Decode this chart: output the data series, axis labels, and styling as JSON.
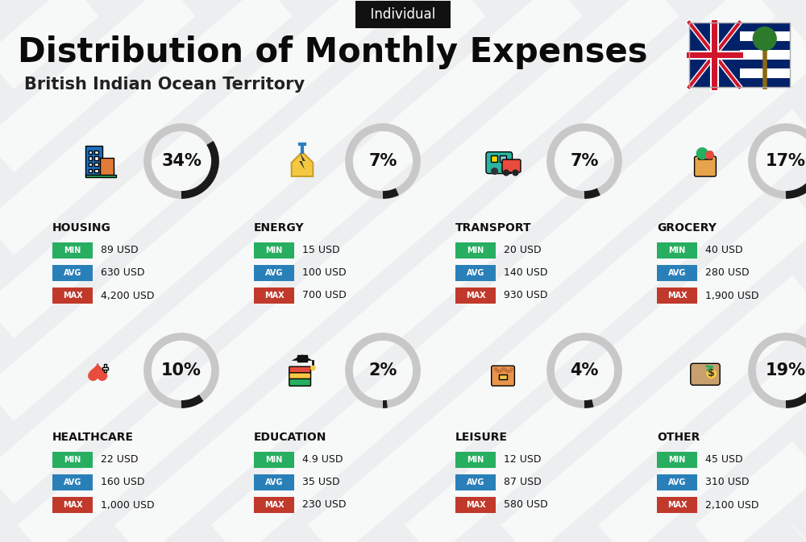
{
  "title": "Distribution of Monthly Expenses",
  "subtitle": "British Indian Ocean Territory",
  "tag": "Individual",
  "bg_color": "#edeef0",
  "stripe_color": "#ffffff",
  "categories": [
    {
      "name": "HOUSING",
      "pct": 34,
      "min": "89 USD",
      "avg": "630 USD",
      "max": "4,200 USD",
      "row": 0,
      "col": 0,
      "icon_color": "#2b7fc1"
    },
    {
      "name": "ENERGY",
      "pct": 7,
      "min": "15 USD",
      "avg": "100 USD",
      "max": "700 USD",
      "row": 0,
      "col": 1,
      "icon_color": "#f5a623"
    },
    {
      "name": "TRANSPORT",
      "pct": 7,
      "min": "20 USD",
      "avg": "140 USD",
      "max": "930 USD",
      "row": 0,
      "col": 2,
      "icon_color": "#2bb5a0"
    },
    {
      "name": "GROCERY",
      "pct": 17,
      "min": "40 USD",
      "avg": "280 USD",
      "max": "1,900 USD",
      "row": 0,
      "col": 3,
      "icon_color": "#e8a44a"
    },
    {
      "name": "HEALTHCARE",
      "pct": 10,
      "min": "22 USD",
      "avg": "160 USD",
      "max": "1,000 USD",
      "row": 1,
      "col": 0,
      "icon_color": "#e74c3c"
    },
    {
      "name": "EDUCATION",
      "pct": 2,
      "min": "4.9 USD",
      "avg": "35 USD",
      "max": "230 USD",
      "row": 1,
      "col": 1,
      "icon_color": "#27ae60"
    },
    {
      "name": "LEISURE",
      "pct": 4,
      "min": "12 USD",
      "avg": "87 USD",
      "max": "580 USD",
      "row": 1,
      "col": 2,
      "icon_color": "#e74c3c"
    },
    {
      "name": "OTHER",
      "pct": 19,
      "min": "45 USD",
      "avg": "310 USD",
      "max": "2,100 USD",
      "row": 1,
      "col": 3,
      "icon_color": "#c8a06e"
    }
  ],
  "color_min": "#27ae60",
  "color_avg": "#2980b9",
  "color_max": "#c0392b",
  "circle_used": "#1a1a1a",
  "circle_bg": "#c8c8c8",
  "title_fontsize": 30,
  "subtitle_fontsize": 15,
  "tag_fontsize": 12,
  "cat_name_fontsize": 10,
  "pct_fontsize": 15,
  "badge_fontsize": 7,
  "value_fontsize": 9
}
